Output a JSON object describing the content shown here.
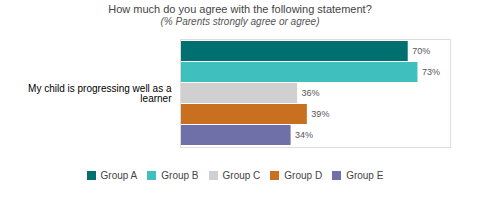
{
  "chart_data": {
    "type": "bar",
    "orientation": "horizontal",
    "title": "How much do you agree with the following statement?",
    "subtitle": "(% Parents strongly agree or agree)",
    "categories": [
      "My child is progressing well as a\n       learner"
    ],
    "series": [
      {
        "name": "Group A",
        "color": "#006f6f",
        "values": [
          70
        ],
        "value_labels": [
          "70%"
        ]
      },
      {
        "name": "Group B",
        "color": "#40bfbf",
        "values": [
          73
        ],
        "value_labels": [
          "73%"
        ]
      },
      {
        "name": "Group C",
        "color": "#d0d0d0",
        "values": [
          36
        ],
        "value_labels": [
          "36%"
        ]
      },
      {
        "name": "Group D",
        "color": "#c87020",
        "values": [
          39
        ],
        "value_labels": [
          "39%"
        ]
      },
      {
        "name": "Group E",
        "color": "#7070a8",
        "values": [
          34
        ],
        "value_labels": [
          "34%"
        ]
      }
    ],
    "xlim": [
      0,
      83
    ],
    "xticks": [],
    "tick_labels": "y",
    "data_labels": true,
    "legend": "bottom",
    "grid": false
  }
}
